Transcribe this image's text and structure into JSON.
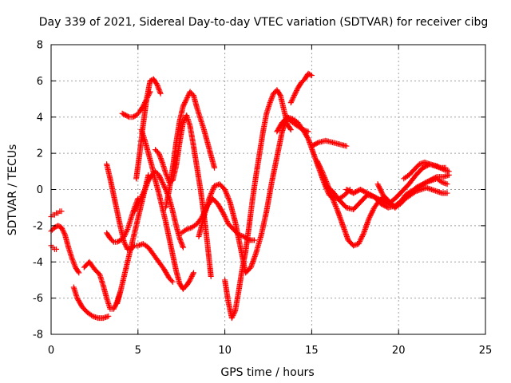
{
  "chart_data": {
    "type": "scatter",
    "title": "Day 339 of 2021, Sidereal Day-to-day VTEC variation (SDTVAR) for receiver cibg",
    "xlabel": "GPS time / hours",
    "ylabel": "SDTVAR / TECUs",
    "xlim": [
      0,
      25
    ],
    "ylim": [
      -8,
      8
    ],
    "x_ticks": [
      "0",
      "5",
      "10",
      "15",
      "20",
      "25"
    ],
    "y_ticks": [
      "-8",
      "-6",
      "-4",
      "-2",
      "0",
      "2",
      "4",
      "6",
      "8"
    ],
    "grid": true,
    "marker": "+",
    "color": "#ff0000",
    "series": [
      {
        "x": [
          0.0,
          0.1,
          0.2,
          0.3,
          0.4,
          0.5,
          0.6
        ],
        "y": [
          -1.5,
          -1.4,
          -1.4,
          -1.3,
          -1.3,
          -1.2,
          -1.2
        ]
      },
      {
        "x": [
          0.0,
          0.1,
          0.2,
          0.3
        ],
        "y": [
          -3.1,
          -3.2,
          -3.3,
          -3.3
        ]
      },
      {
        "x": [
          0.0,
          0.2,
          0.4,
          0.6,
          0.8,
          1.0,
          1.2,
          1.4,
          1.6
        ],
        "y": [
          -2.3,
          -2.1,
          -2.0,
          -2.1,
          -2.5,
          -3.2,
          -3.8,
          -4.3,
          -4.6
        ]
      },
      {
        "x": [
          1.3,
          1.5,
          1.8,
          2.1,
          2.4,
          2.7,
          3.0,
          3.3
        ],
        "y": [
          -5.4,
          -6.0,
          -6.5,
          -6.8,
          -7.0,
          -7.1,
          -7.1,
          -7.0
        ]
      },
      {
        "x": [
          1.9,
          2.2,
          2.5,
          2.8,
          3.0,
          3.2,
          3.4,
          3.6,
          3.8,
          4.0
        ],
        "y": [
          -4.3,
          -4.0,
          -4.4,
          -4.7,
          -5.3,
          -6.0,
          -6.6,
          -6.6,
          -6.2,
          -5.6
        ]
      },
      {
        "x": [
          3.2,
          3.4,
          3.6,
          3.8,
          4.0,
          4.2,
          4.4,
          4.6,
          4.8,
          5.0
        ],
        "y": [
          -2.4,
          -2.7,
          -2.9,
          -2.9,
          -2.8,
          -2.6,
          -2.2,
          -1.6,
          -1.0,
          -0.5
        ]
      },
      {
        "x": [
          3.2,
          3.4,
          3.6,
          3.8,
          4.0,
          4.2,
          4.4,
          4.6,
          4.8,
          5.0,
          5.3,
          5.6,
          5.9,
          6.2,
          6.5,
          6.8,
          7.0
        ],
        "y": [
          1.4,
          0.6,
          -0.3,
          -1.2,
          -2.1,
          -2.9,
          -3.3,
          -3.3,
          -3.1,
          -3.1,
          -3.0,
          -3.2,
          -3.6,
          -4.0,
          -4.4,
          -4.9,
          -5.1
        ]
      },
      {
        "x": [
          3.8,
          4.0,
          4.2,
          4.4,
          4.6,
          4.8,
          5.0,
          5.2,
          5.4,
          5.6
        ],
        "y": [
          -6.3,
          -5.6,
          -4.8,
          -4.0,
          -3.2,
          -2.4,
          -1.6,
          -0.8,
          0.0,
          0.8
        ]
      },
      {
        "x": [
          4.1,
          4.3,
          4.5,
          4.7,
          4.9,
          5.1,
          5.3,
          5.5,
          5.7
        ],
        "y": [
          4.2,
          4.1,
          4.0,
          4.0,
          4.1,
          4.3,
          4.6,
          5.0,
          5.4
        ]
      },
      {
        "x": [
          4.9,
          5.1,
          5.3,
          5.5,
          5.7,
          5.9,
          6.1,
          6.3
        ],
        "y": [
          0.6,
          2.0,
          3.6,
          5.0,
          6.0,
          6.1,
          5.8,
          5.3
        ]
      },
      {
        "x": [
          5.2,
          5.4,
          5.6,
          5.8,
          6.0,
          6.2,
          6.4,
          6.6,
          6.8,
          7.0,
          7.2,
          7.4,
          7.6,
          7.8,
          8.0,
          8.2
        ],
        "y": [
          3.3,
          2.7,
          2.0,
          1.3,
          0.5,
          -0.2,
          -1.0,
          -1.8,
          -2.7,
          -3.6,
          -4.5,
          -5.2,
          -5.5,
          -5.3,
          -5.0,
          -4.6
        ]
      },
      {
        "x": [
          4.8,
          5.0,
          5.2,
          5.4,
          5.6,
          5.8,
          6.0,
          6.2,
          6.4,
          6.6,
          6.8,
          7.0,
          7.2,
          7.4,
          7.6
        ],
        "y": [
          -1.2,
          -0.8,
          -0.4,
          0.0,
          0.5,
          0.8,
          1.0,
          0.8,
          0.4,
          0.0,
          -0.5,
          -1.2,
          -2.0,
          -2.7,
          -3.2
        ]
      },
      {
        "x": [
          6.0,
          6.2,
          6.4,
          6.6,
          6.8,
          7.0,
          7.2,
          7.4,
          7.6,
          7.8,
          8.0,
          8.2,
          8.4,
          8.6,
          8.8,
          9.0,
          9.2
        ],
        "y": [
          2.2,
          2.0,
          1.5,
          0.9,
          0.4,
          0.5,
          1.3,
          2.6,
          3.7,
          4.1,
          3.5,
          2.4,
          1.2,
          0.0,
          -1.4,
          -3.0,
          -4.8
        ]
      },
      {
        "x": [
          6.6,
          6.8,
          7.0,
          7.2,
          7.4,
          7.6,
          7.8,
          8.0,
          8.2,
          8.4,
          8.6,
          8.8,
          9.0,
          9.2,
          9.4
        ],
        "y": [
          -1.0,
          0.0,
          1.2,
          2.6,
          3.8,
          4.6,
          5.0,
          5.4,
          5.2,
          4.5,
          3.9,
          3.3,
          2.6,
          1.9,
          1.2
        ]
      },
      {
        "x": [
          7.5,
          7.8,
          8.1,
          8.4,
          8.7,
          9.0,
          9.3,
          9.6,
          9.9,
          10.2,
          10.5,
          10.8,
          11.1,
          11.4,
          11.7
        ],
        "y": [
          -2.4,
          -2.2,
          -2.1,
          -1.9,
          -1.5,
          -0.9,
          -0.5,
          -0.8,
          -1.3,
          -1.9,
          -2.2,
          -2.5,
          -2.6,
          -2.8,
          -2.8
        ]
      },
      {
        "x": [
          8.5,
          8.8,
          9.1,
          9.4,
          9.7,
          10.0,
          10.3,
          10.6,
          10.9,
          11.2,
          11.5,
          11.8,
          12.1,
          12.4,
          12.7,
          13.0,
          13.3,
          13.6,
          13.9,
          14.2,
          14.5,
          14.8
        ],
        "y": [
          -2.6,
          -1.5,
          -0.5,
          0.2,
          0.3,
          0.0,
          -0.7,
          -1.8,
          -3.2,
          -4.6,
          -4.3,
          -3.5,
          -2.5,
          -1.2,
          0.4,
          1.8,
          3.2,
          4.0,
          3.7,
          3.5,
          3.3,
          3.2
        ]
      },
      {
        "x": [
          10.0,
          10.2,
          10.4,
          10.6,
          10.8,
          11.0,
          11.2,
          11.4,
          11.6,
          11.8,
          12.0,
          12.2,
          12.4,
          12.6,
          12.8,
          13.0,
          13.2,
          13.4,
          13.6,
          13.8
        ],
        "y": [
          -5.0,
          -6.2,
          -7.1,
          -6.7,
          -5.6,
          -4.4,
          -3.4,
          -2.0,
          -0.5,
          0.8,
          2.0,
          3.2,
          4.2,
          4.8,
          5.3,
          5.5,
          5.2,
          4.4,
          3.6,
          3.3
        ]
      },
      {
        "x": [
          13.8,
          14.0,
          14.2,
          14.4,
          14.6,
          14.8,
          15.0
        ],
        "y": [
          4.8,
          5.2,
          5.6,
          5.9,
          6.1,
          6.4,
          6.3
        ]
      },
      {
        "x": [
          13.0,
          13.3,
          13.6,
          13.9,
          14.2,
          14.5,
          14.8,
          15.1,
          15.4,
          15.7,
          16.0,
          16.3,
          16.6,
          16.9,
          17.2
        ],
        "y": [
          3.2,
          3.7,
          4.0,
          3.9,
          3.7,
          3.3,
          2.8,
          2.0,
          1.2,
          0.4,
          -0.3,
          -0.5,
          -0.5,
          -0.3,
          0.0
        ]
      },
      {
        "x": [
          15.0,
          15.4,
          15.8,
          16.2,
          16.6,
          17.0
        ],
        "y": [
          2.4,
          2.6,
          2.7,
          2.6,
          2.5,
          2.4
        ]
      },
      {
        "x": [
          15.3,
          15.6,
          15.9,
          16.2,
          16.5,
          16.8,
          17.1,
          17.4,
          17.7,
          18.0,
          18.3,
          18.6,
          18.9,
          19.2,
          19.5,
          19.8,
          20.1,
          20.4,
          20.7,
          21.0,
          21.3,
          21.6,
          21.9,
          22.2,
          22.5,
          22.8
        ],
        "y": [
          1.6,
          1.0,
          0.3,
          -0.5,
          -1.2,
          -2.0,
          -2.8,
          -3.1,
          -3.0,
          -2.4,
          -1.6,
          -1.0,
          -0.6,
          -0.4,
          -0.7,
          -1.0,
          -0.8,
          -0.5,
          -0.3,
          -0.1,
          0.0,
          0.1,
          0.0,
          -0.1,
          -0.2,
          -0.2
        ]
      },
      {
        "x": [
          15.8,
          16.2,
          16.6,
          17.0,
          17.4,
          17.8,
          18.2,
          18.6,
          19.0,
          19.4,
          19.8,
          20.2,
          20.6,
          21.0,
          21.4,
          21.8,
          22.2,
          22.6,
          22.9
        ],
        "y": [
          0.2,
          -0.1,
          -0.6,
          -1.0,
          -1.1,
          -0.7,
          -0.3,
          -0.4,
          -0.8,
          -1.0,
          -0.9,
          -0.6,
          -0.3,
          0.1,
          0.3,
          0.5,
          0.7,
          0.7,
          0.8
        ]
      },
      {
        "x": [
          17.0,
          17.4,
          17.8,
          18.2,
          18.6,
          19.0,
          19.4,
          19.8,
          20.2,
          20.6,
          21.0,
          21.4,
          21.8,
          22.2,
          22.6,
          22.9
        ],
        "y": [
          0.0,
          -0.2,
          0.0,
          -0.2,
          -0.4,
          -0.6,
          -0.8,
          -0.5,
          -0.1,
          0.3,
          0.8,
          1.2,
          1.4,
          1.3,
          1.1,
          1.0
        ]
      },
      {
        "x": [
          18.8,
          19.0,
          19.2,
          19.5,
          19.8,
          20.1,
          20.4,
          20.7,
          21.0,
          21.3,
          21.6,
          21.9,
          22.2,
          22.5,
          22.8
        ],
        "y": [
          0.3,
          -0.1,
          -0.5,
          -0.8,
          -1.0,
          -0.7,
          -0.3,
          -0.1,
          0.0,
          0.2,
          0.4,
          0.5,
          0.6,
          0.4,
          0.3
        ]
      },
      {
        "x": [
          20.3,
          20.6,
          20.9,
          21.2,
          21.5,
          21.8,
          22.1,
          22.4,
          22.7
        ],
        "y": [
          0.6,
          0.8,
          1.1,
          1.4,
          1.5,
          1.4,
          1.3,
          1.2,
          1.2
        ]
      }
    ]
  }
}
